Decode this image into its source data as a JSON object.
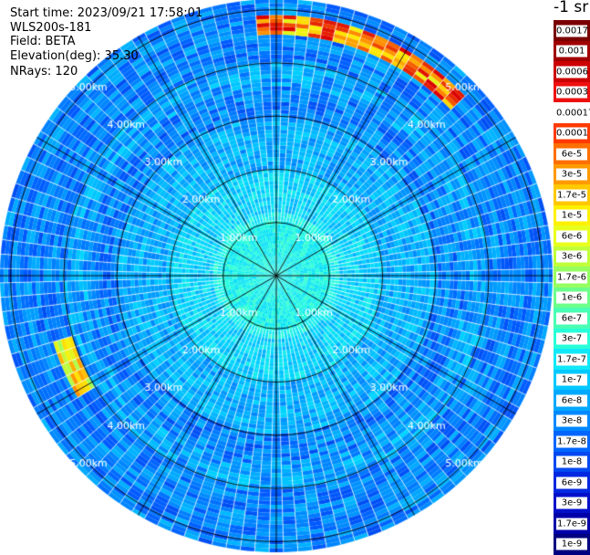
{
  "header": {
    "start_time": "Start time: 2023/09/21 17:58:01",
    "instrument": "WLS200s-181",
    "field": "Field: BETA",
    "elevation": "Elevation(deg): 35.30",
    "nrays": "NRays: 120"
  },
  "units_label": "-1 sr",
  "chart_data": {
    "type": "heatmap",
    "projection": "polar (PPI scan)",
    "field": "BETA",
    "n_rays": 120,
    "elevation_deg": 35.3,
    "range_rings_km": [
      1,
      2,
      3,
      4,
      5
    ],
    "ring_labels": [
      "1.00km",
      "2.00km",
      "3.00km",
      "4.00km",
      "5.00km"
    ],
    "max_range_km": 5.2,
    "radial_spokes_deg": [
      0,
      30,
      60,
      90,
      120,
      150,
      180,
      210,
      240,
      270,
      300,
      330
    ],
    "colorbar": {
      "scale": "log",
      "ticks": [
        "0.0017",
        "0.001",
        "0.0006",
        "0.0003",
        "0.00017",
        "0.0001",
        "6e-5",
        "3e-5",
        "1.7e-5",
        "1e-5",
        "6e-6",
        "3e-6",
        "1.7e-6",
        "1e-6",
        "6e-7",
        "3e-7",
        "1.7e-7",
        "1e-7",
        "6e-8",
        "3e-8",
        "1.7e-8",
        "1e-8",
        "6e-9",
        "3e-9",
        "1.7e-9",
        "1e-9"
      ],
      "colors": [
        "#7a0000",
        "#a00000",
        "#cc0000",
        "#ee1010",
        "#ffffff",
        "#ff3a00",
        "#ff6f00",
        "#ff9a00",
        "#ffc800",
        "#fff000",
        "#e8ff1e",
        "#c0ff3a",
        "#96ff60",
        "#6cff8a",
        "#48ffb4",
        "#28ffd8",
        "#10e8f8",
        "#00c8ff",
        "#00a8ff",
        "#0088ff",
        "#0066ff",
        "#0048f0",
        "#0028e0",
        "#0010c8",
        "#0000a8",
        "#000080"
      ]
    },
    "features": [
      {
        "description": "high backscatter arc",
        "azimuth_deg_range": [
          -5,
          45
        ],
        "range_km": [
          4.5,
          4.9
        ],
        "peak_value": "3e-4"
      },
      {
        "description": "high backscatter arc",
        "azimuth_deg_range": [
          238,
          252
        ],
        "range_km": [
          4.0,
          4.4
        ],
        "peak_value": "1e-5"
      }
    ],
    "background_level": "3e-8 to 1e-7"
  }
}
